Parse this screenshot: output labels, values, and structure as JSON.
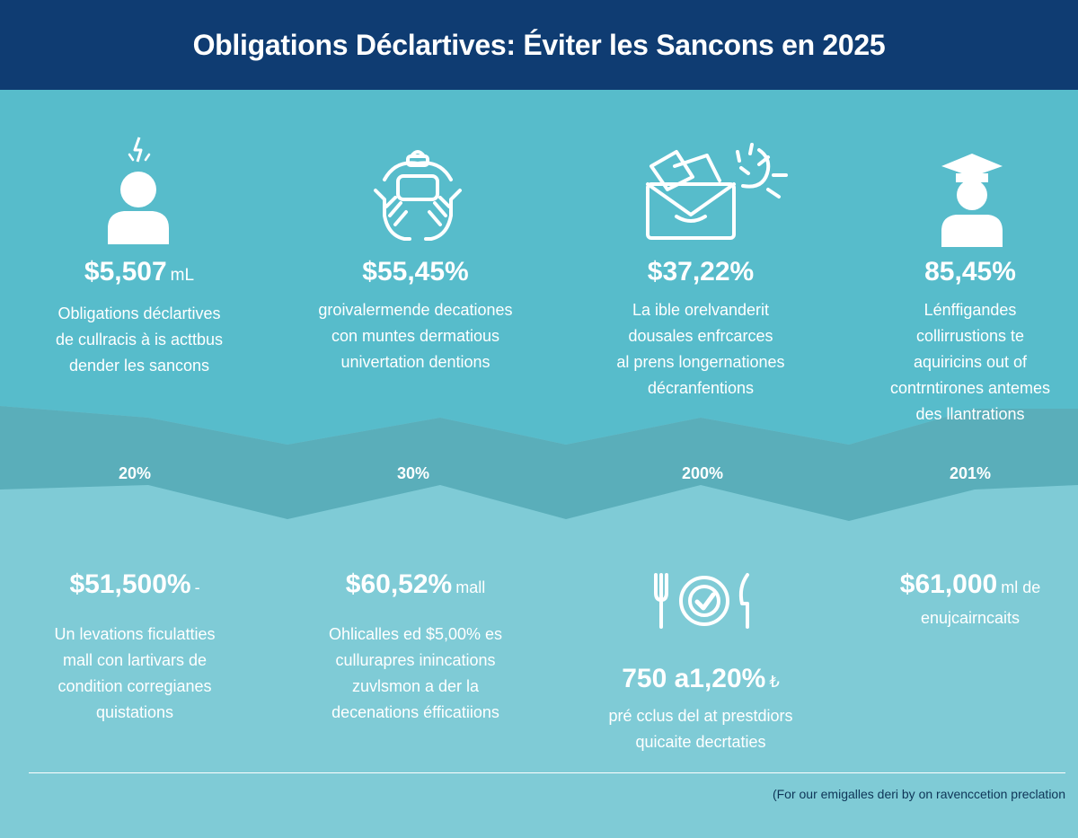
{
  "header": {
    "title": "Obligations Déclartives: Éviter les Sancons en 2025"
  },
  "colors": {
    "header_bg": "#0f3c72",
    "band_top": "#57bccb",
    "band_mid": "#5aaeba",
    "band_bottom": "#7fcbd6",
    "text": "#ffffff",
    "footnote": "#0e3557"
  },
  "top_row": [
    {
      "icon": "person-alert-icon",
      "value": "$5,507",
      "unit": "mL",
      "lines": [
        "Obligations déclartives",
        "de cullracis à is acttbus",
        "dender les sancons"
      ]
    },
    {
      "icon": "hands-device-icon",
      "value": "$55,45%",
      "unit": "",
      "lines": [
        "groivalermende decationes",
        "con muntes dermatious",
        "univertation dentions"
      ]
    },
    {
      "icon": "envelope-documents-icon",
      "value": "$37,22%",
      "unit": "",
      "lines": [
        "La ible orelvanderit",
        "dousales enfrcarces",
        "al prens longernationes",
        "décranfentions"
      ]
    },
    {
      "icon": "graduate-person-icon",
      "value": "85,45%",
      "unit": "",
      "lines": [
        "Lénffigandes",
        "collirrustions te",
        "aquiricins out of",
        "contrntirones antemes",
        "des llantrations"
      ]
    }
  ],
  "percent_row": [
    "20%",
    "30%",
    "200%",
    "201%"
  ],
  "bottom_row": [
    {
      "value": "$51,500%",
      "trail": "-",
      "lines": [
        "Un levations ficulatties",
        "mall con lartivars de",
        "condition corregianes",
        "quistations"
      ]
    },
    {
      "value": "$60,52%",
      "trail": "mall",
      "lines": [
        "Ohlicalles ed $5,00% es",
        "cullurapres inincations",
        "zuvlsmon a der la",
        "decenations éfficatiions"
      ]
    },
    {
      "icon": "fork-plate-knife-icon",
      "value": "750 a1,20%",
      "trail": "₺",
      "lines": [
        "pré cclus del at prestdiors",
        "quicaite decrtaties"
      ]
    },
    {
      "value": "$61,000",
      "trail": "ml de",
      "lines": [
        "enujcairncaits"
      ]
    }
  ],
  "footnote": "(For our emigalles deri by on ravenccetion preclation"
}
